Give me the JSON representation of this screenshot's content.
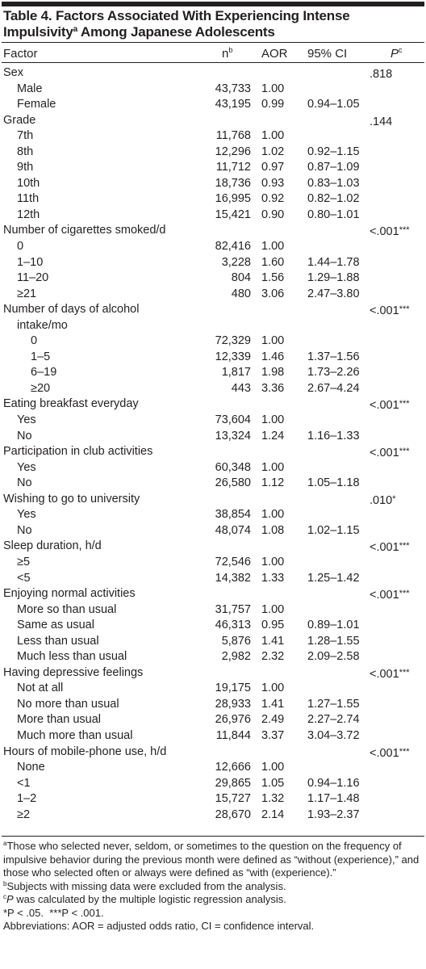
{
  "title": {
    "line1": "Table 4. Factors Associated With Experiencing Intense",
    "line2_before": "Impulsivity",
    "line2_sup": "a",
    "line2_after": " Among Japanese Adolescents"
  },
  "header": {
    "factor": "Factor",
    "n": "n",
    "n_sup": "b",
    "aor": "AOR",
    "ci": "95% CI",
    "p": "P",
    "p_sup": "c"
  },
  "rows": [
    {
      "level": 0,
      "factor": "Sex",
      "n": "",
      "aor": "",
      "ci": "",
      "p": ".818",
      "stars": ""
    },
    {
      "level": 1,
      "factor": "Male",
      "n": "43,733",
      "aor": "1.00",
      "ci": "",
      "p": "",
      "stars": ""
    },
    {
      "level": 1,
      "factor": "Female",
      "n": "43,195",
      "aor": "0.99",
      "ci": "0.94–1.05",
      "p": "",
      "stars": ""
    },
    {
      "level": 0,
      "factor": "Grade",
      "n": "",
      "aor": "",
      "ci": "",
      "p": ".144",
      "stars": ""
    },
    {
      "level": 1,
      "factor": "7th",
      "n": "11,768",
      "aor": "1.00",
      "ci": "",
      "p": "",
      "stars": ""
    },
    {
      "level": 1,
      "factor": "8th",
      "n": "12,296",
      "aor": "1.02",
      "ci": "0.92–1.15",
      "p": "",
      "stars": ""
    },
    {
      "level": 1,
      "factor": "9th",
      "n": "11,712",
      "aor": "0.97",
      "ci": "0.87–1.09",
      "p": "",
      "stars": ""
    },
    {
      "level": 1,
      "factor": "10th",
      "n": "18,736",
      "aor": "0.93",
      "ci": "0.83–1.03",
      "p": "",
      "stars": ""
    },
    {
      "level": 1,
      "factor": "11th",
      "n": "16,995",
      "aor": "0.92",
      "ci": "0.82–1.02",
      "p": "",
      "stars": ""
    },
    {
      "level": 1,
      "factor": "12th",
      "n": "15,421",
      "aor": "0.90",
      "ci": "0.80–1.01",
      "p": "",
      "stars": ""
    },
    {
      "level": 0,
      "factor": "Number of cigarettes smoked/d",
      "n": "",
      "aor": "",
      "ci": "",
      "p": "<.001",
      "stars": "***"
    },
    {
      "level": 1,
      "factor": "0",
      "n": "82,416",
      "aor": "1.00",
      "ci": "",
      "p": "",
      "stars": ""
    },
    {
      "level": 1,
      "factor": "1–10",
      "n": "3,228",
      "aor": "1.60",
      "ci": "1.44–1.78",
      "p": "",
      "stars": ""
    },
    {
      "level": 1,
      "factor": "11–20",
      "n": "804",
      "aor": "1.56",
      "ci": "1.29–1.88",
      "p": "",
      "stars": ""
    },
    {
      "level": 1,
      "factor": "≥21",
      "n": "480",
      "aor": "3.06",
      "ci": "2.47–3.80",
      "p": "",
      "stars": ""
    },
    {
      "level": 0,
      "factor": "Number of days of alcohol",
      "n": "",
      "aor": "",
      "ci": "",
      "p": "<.001",
      "stars": "***"
    },
    {
      "level": 1,
      "factor": "intake/mo",
      "n": "",
      "aor": "",
      "ci": "",
      "p": "",
      "stars": ""
    },
    {
      "level": 2,
      "factor": "0",
      "n": "72,329",
      "aor": "1.00",
      "ci": "",
      "p": "",
      "stars": ""
    },
    {
      "level": 2,
      "factor": "1–5",
      "n": "12,339",
      "aor": "1.46",
      "ci": "1.37–1.56",
      "p": "",
      "stars": ""
    },
    {
      "level": 2,
      "factor": "6–19",
      "n": "1,817",
      "aor": "1.98",
      "ci": "1.73–2.26",
      "p": "",
      "stars": ""
    },
    {
      "level": 2,
      "factor": "≥20",
      "n": "443",
      "aor": "3.36",
      "ci": "2.67–4.24",
      "p": "",
      "stars": ""
    },
    {
      "level": 0,
      "factor": "Eating breakfast everyday",
      "n": "",
      "aor": "",
      "ci": "",
      "p": "<.001",
      "stars": "***"
    },
    {
      "level": 1,
      "factor": "Yes",
      "n": "73,604",
      "aor": "1.00",
      "ci": "",
      "p": "",
      "stars": ""
    },
    {
      "level": 1,
      "factor": "No",
      "n": "13,324",
      "aor": "1.24",
      "ci": "1.16–1.33",
      "p": "",
      "stars": ""
    },
    {
      "level": 0,
      "factor": "Participation in club activities",
      "n": "",
      "aor": "",
      "ci": "",
      "p": "<.001",
      "stars": "***"
    },
    {
      "level": 1,
      "factor": "Yes",
      "n": "60,348",
      "aor": "1.00",
      "ci": "",
      "p": "",
      "stars": ""
    },
    {
      "level": 1,
      "factor": "No",
      "n": "26,580",
      "aor": "1.12",
      "ci": "1.05–1.18",
      "p": "",
      "stars": ""
    },
    {
      "level": 0,
      "factor": "Wishing to go to university",
      "n": "",
      "aor": "",
      "ci": "",
      "p": ".010",
      "stars": "*"
    },
    {
      "level": 1,
      "factor": "Yes",
      "n": "38,854",
      "aor": "1.00",
      "ci": "",
      "p": "",
      "stars": ""
    },
    {
      "level": 1,
      "factor": "No",
      "n": "48,074",
      "aor": "1.08",
      "ci": "1.02–1.15",
      "p": "",
      "stars": ""
    },
    {
      "level": 0,
      "factor": "Sleep duration, h/d",
      "n": "",
      "aor": "",
      "ci": "",
      "p": "<.001",
      "stars": "***"
    },
    {
      "level": 1,
      "factor": "≥5",
      "n": "72,546",
      "aor": "1.00",
      "ci": "",
      "p": "",
      "stars": ""
    },
    {
      "level": 1,
      "factor": "<5",
      "n": "14,382",
      "aor": "1.33",
      "ci": "1.25–1.42",
      "p": "",
      "stars": ""
    },
    {
      "level": 0,
      "factor": "Enjoying normal activities",
      "n": "",
      "aor": "",
      "ci": "",
      "p": "<.001",
      "stars": "***"
    },
    {
      "level": 1,
      "factor": "More so than usual",
      "n": "31,757",
      "aor": "1.00",
      "ci": "",
      "p": "",
      "stars": ""
    },
    {
      "level": 1,
      "factor": "Same as usual",
      "n": "46,313",
      "aor": "0.95",
      "ci": "0.89–1.01",
      "p": "",
      "stars": ""
    },
    {
      "level": 1,
      "factor": "Less than usual",
      "n": "5,876",
      "aor": "1.41",
      "ci": "1.28–1.55",
      "p": "",
      "stars": ""
    },
    {
      "level": 1,
      "factor": "Much less than usual",
      "n": "2,982",
      "aor": "2.32",
      "ci": "2.09–2.58",
      "p": "",
      "stars": ""
    },
    {
      "level": 0,
      "factor": "Having depressive feelings",
      "n": "",
      "aor": "",
      "ci": "",
      "p": "<.001",
      "stars": "***"
    },
    {
      "level": 1,
      "factor": "Not at all",
      "n": "19,175",
      "aor": "1.00",
      "ci": "",
      "p": "",
      "stars": ""
    },
    {
      "level": 1,
      "factor": "No more than usual",
      "n": "28,933",
      "aor": "1.41",
      "ci": "1.27–1.55",
      "p": "",
      "stars": ""
    },
    {
      "level": 1,
      "factor": "More than usual",
      "n": "26,976",
      "aor": "2.49",
      "ci": "2.27–2.74",
      "p": "",
      "stars": ""
    },
    {
      "level": 1,
      "factor": "Much more than usual",
      "n": "11,844",
      "aor": "3.37",
      "ci": "3.04–3.72",
      "p": "",
      "stars": ""
    },
    {
      "level": 0,
      "factor": "Hours of mobile-phone use, h/d",
      "n": "",
      "aor": "",
      "ci": "",
      "p": "<.001",
      "stars": "***"
    },
    {
      "level": 1,
      "factor": "None",
      "n": "12,666",
      "aor": "1.00",
      "ci": "",
      "p": "",
      "stars": ""
    },
    {
      "level": 1,
      "factor": "<1",
      "n": "29,865",
      "aor": "1.05",
      "ci": "0.94–1.16",
      "p": "",
      "stars": ""
    },
    {
      "level": 1,
      "factor": "1–2",
      "n": "15,727",
      "aor": "1.32",
      "ci": "1.17–1.48",
      "p": "",
      "stars": ""
    },
    {
      "level": 1,
      "factor": "≥2",
      "n": "28,670",
      "aor": "2.14",
      "ci": "1.93–2.37",
      "p": "",
      "stars": ""
    }
  ],
  "footnotes": {
    "a_mark": "a",
    "a_text": "Those who selected never, seldom, or sometimes to the question on the frequency of impulsive behavior during the previous month were defined as “without (experience),” and those who selected often or always were defined as “with (experience).”",
    "b_mark": "b",
    "b_text": "Subjects with missing data were excluded from the analysis.",
    "c_mark": "c",
    "c_p": "P",
    "c_text": " was calculated by the multiple logistic regression analysis.",
    "sig_1": "*P < .05.",
    "sig_2": "***P < .001.",
    "abbrev": "Abbreviations: AOR = adjusted odds ratio, CI = confidence interval."
  }
}
